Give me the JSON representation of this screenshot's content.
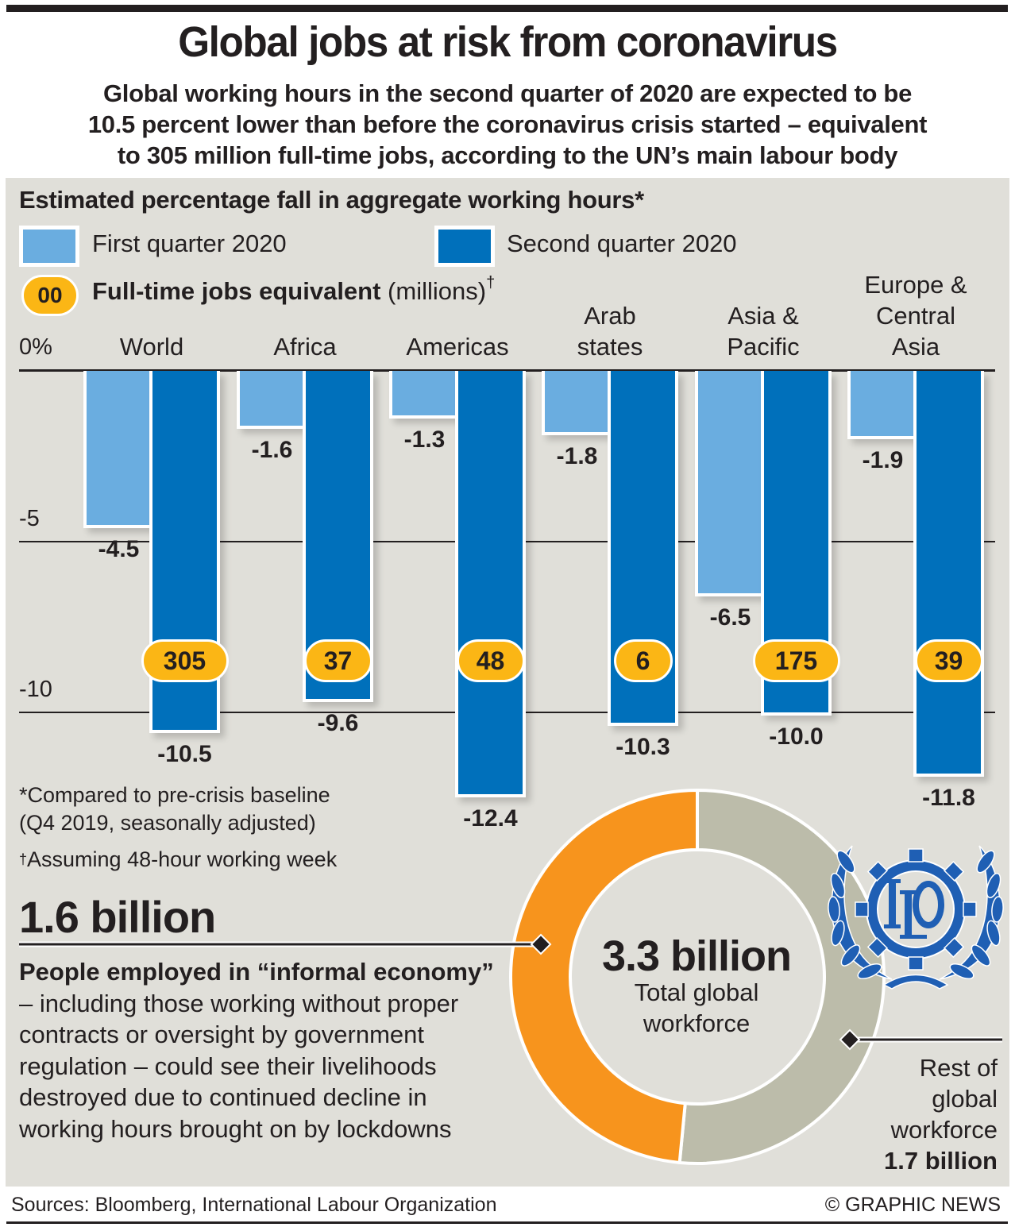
{
  "header": {
    "title": "Global jobs at risk from coronavirus",
    "subtitle_lines": [
      "Global working hours in the second quarter of 2020 are expected to be",
      "10.5 percent lower than before the coronavirus crisis started – equivalent",
      "to 305 million full-time jobs, according to the UN’s main labour body"
    ]
  },
  "colors": {
    "first_quarter": "#6aade0",
    "second_quarter": "#0070bb",
    "jobs_badge": "#fbb615",
    "informal_economy": "#f7941d",
    "rest_of_workforce": "#bcbcaa",
    "panel_background": "#e0dfd9",
    "logo_blue": "#1f5fb4"
  },
  "chart_data": [
    {
      "type": "bar",
      "title": "Estimated percentage fall in aggregate working hours*",
      "xlabel": "",
      "ylabel": "",
      "ylim": [
        -12.4,
        0
      ],
      "grid": true,
      "yticks": [
        {
          "value": 0,
          "label": "0%"
        },
        {
          "value": -5,
          "label": "-5"
        },
        {
          "value": -10,
          "label": "-10"
        }
      ],
      "legend": {
        "placement": "top-left",
        "entries": [
          "First quarter 2020",
          "Second quarter 2020"
        ],
        "badge_sample": "00",
        "badge_label_bold": "Full-time jobs equivalent",
        "badge_label_rest": " (millions)",
        "badge_label_mark": "†"
      },
      "categories": [
        {
          "lines": [
            "World"
          ]
        },
        {
          "lines": [
            "Africa"
          ]
        },
        {
          "lines": [
            "Americas"
          ]
        },
        {
          "lines": [
            "Arab",
            "states"
          ]
        },
        {
          "lines": [
            "Asia &",
            "Pacific"
          ]
        },
        {
          "lines": [
            "Europe &",
            "Central",
            "Asia"
          ]
        }
      ],
      "series": [
        {
          "name": "First quarter 2020",
          "values": [
            -4.5,
            -1.6,
            -1.3,
            -1.8,
            -6.5,
            -1.9
          ],
          "labels": [
            "-4.5",
            "-1.6",
            "-1.3",
            "-1.8",
            "-6.5",
            "-1.9"
          ]
        },
        {
          "name": "Second quarter 2020",
          "values": [
            -10.5,
            -9.6,
            -12.4,
            -10.3,
            -10.0,
            -11.8
          ],
          "labels": [
            "-10.5",
            "-9.6",
            "-12.4",
            "-10.3",
            "-10.0",
            "-11.8"
          ]
        }
      ],
      "full_time_jobs_millions": [
        "305",
        "37",
        "48",
        "6",
        "175",
        "39"
      ]
    },
    {
      "type": "pie",
      "title": "",
      "center_value": "3.3 billion",
      "center_label_lines": [
        "Total global",
        "workforce"
      ],
      "slices": [
        {
          "name": "People employed in informal economy",
          "value": 1.6,
          "unit": "billion"
        },
        {
          "name": "Rest of global workforce",
          "value": 1.7,
          "unit": "billion"
        }
      ]
    }
  ],
  "notes": {
    "footnote_star_lines": [
      "*Compared to pre-crisis baseline",
      "(Q4 2019, seasonally adjusted)"
    ],
    "footnote_dagger_mark": "†",
    "footnote_dagger_text": "Assuming 48-hour working week"
  },
  "informal": {
    "figure": "1.6 billion",
    "desc_bold": "People employed in “informal economy”",
    "desc_rest": " – including those working without proper contracts or oversight by government regulation – could see their livelihoods destroyed due to continued decline in working hours brought on by lockdowns"
  },
  "rest": {
    "label_lines": [
      "Rest of",
      "global",
      "workforce"
    ],
    "figure": "1.7 billion"
  },
  "logo": {
    "text": "ILO"
  },
  "footer": {
    "sources": "Sources: Bloomberg, International Labour Organization",
    "credit": "© GRAPHIC NEWS"
  }
}
